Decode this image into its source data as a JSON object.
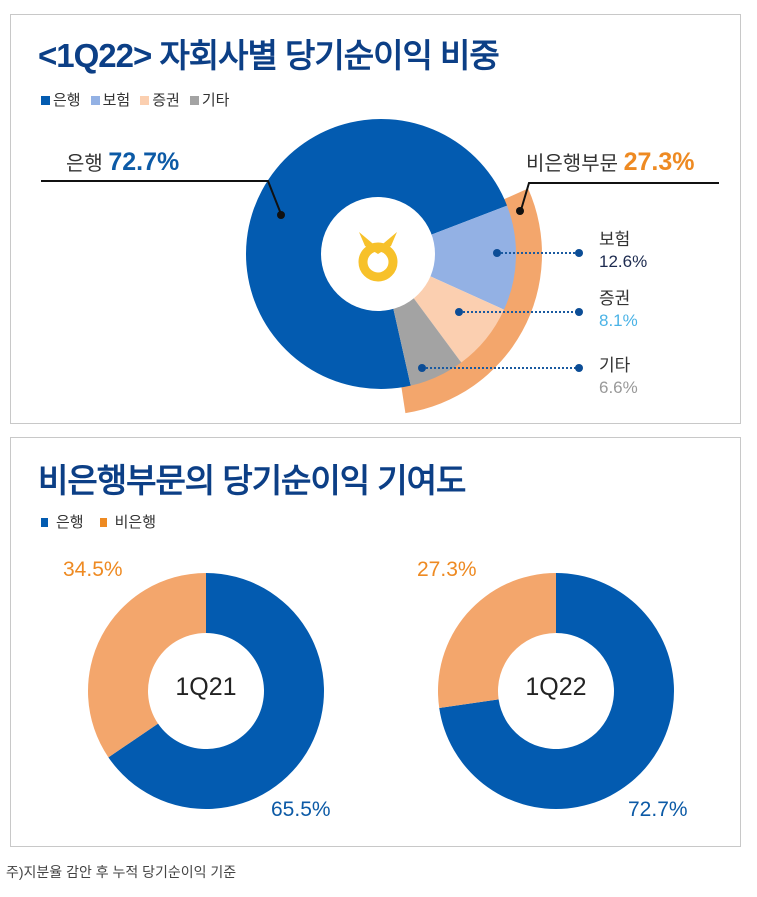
{
  "colors": {
    "bank": "#035bb0",
    "insurance": "#93b1e4",
    "securities": "#fbcfb0",
    "other": "#a3a3a3",
    "nonbank": "#f3a66c",
    "orange_text": "#ee8a22",
    "blue_text": "#0c5aa6",
    "light_blue_text": "#4bb3e6",
    "gray_text": "#999999",
    "logo": "#f7c12a"
  },
  "chart_data": [
    {
      "type": "pie",
      "title": "<1Q22> 자회사별 당기순이익 비중",
      "legend": [
        "은행",
        "보험",
        "증권",
        "기타"
      ],
      "slices": [
        {
          "name": "은행",
          "value": 72.7
        },
        {
          "name": "보험",
          "value": 12.6
        },
        {
          "name": "증권",
          "value": 8.1
        },
        {
          "name": "기타",
          "value": 6.6
        }
      ],
      "outer_ring": {
        "name": "비은행부문",
        "value": 27.3
      },
      "labels": {
        "bank": "은행",
        "bank_value": "72.7%",
        "nonbank": "비은행부문",
        "nonbank_value": "27.3%",
        "insurance": "보험",
        "insurance_value": "12.6%",
        "securities": "증권",
        "securities_value": "8.1%",
        "other": "기타",
        "other_value": "6.6%"
      }
    },
    {
      "type": "pie",
      "title": "비은행부문의 당기순이익 기여도",
      "legend": [
        "은행",
        "비은행"
      ],
      "charts": [
        {
          "center_label": "1Q21",
          "bank": 65.5,
          "nonbank": 34.5,
          "bank_label": "65.5%",
          "nonbank_label": "34.5%"
        },
        {
          "center_label": "1Q22",
          "bank": 72.7,
          "nonbank": 27.3,
          "bank_label": "72.7%",
          "nonbank_label": "27.3%"
        }
      ]
    }
  ],
  "footnote": "주)지분율 감안 후 누적 당기순이익 기준"
}
